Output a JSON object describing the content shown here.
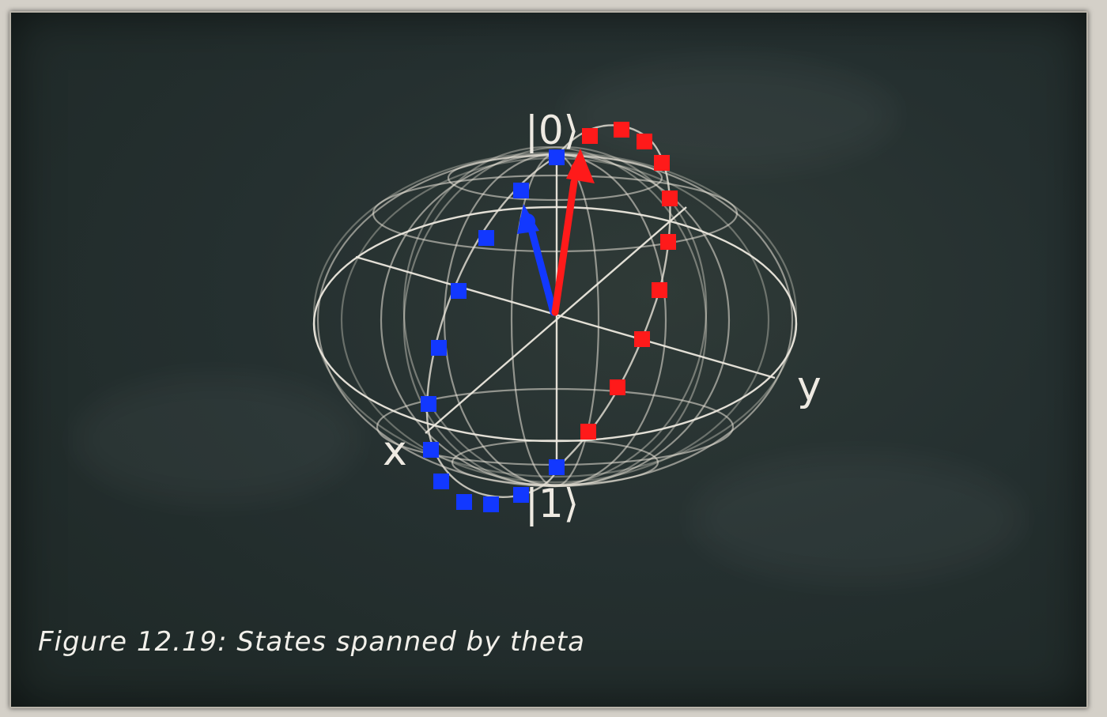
{
  "diagram": {
    "labels": {
      "top_state": "|0⟩",
      "bottom_state": "|1⟩",
      "x_axis": "x",
      "y_axis": "y"
    },
    "colors": {
      "sphere": "#e9e4d8",
      "series_a": "#1238ff",
      "series_b": "#ff1a1a",
      "board": "#263130",
      "chalk_text": "#f2f0ea"
    },
    "vectors": [
      {
        "name": "blue-vector",
        "color": "#1238ff"
      },
      {
        "name": "red-vector",
        "color": "#ff1a1a"
      }
    ]
  },
  "caption": {
    "text": "Figure 12.19: States spanned by theta"
  }
}
